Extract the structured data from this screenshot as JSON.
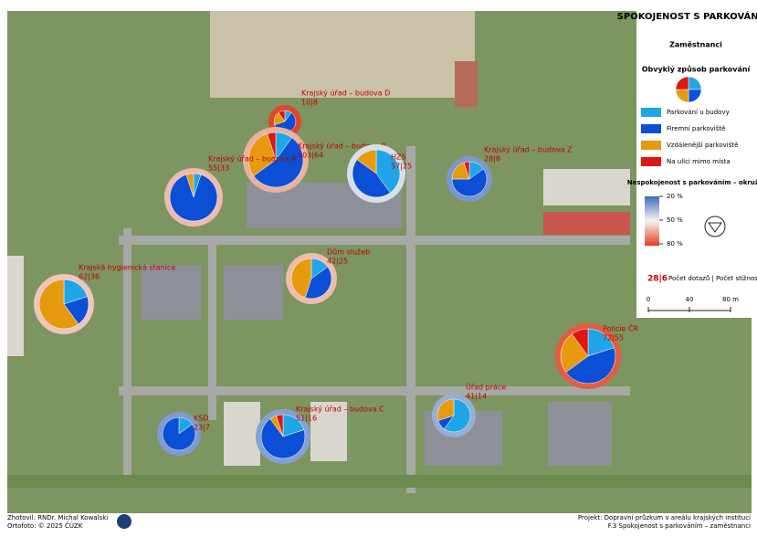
{
  "legend": {
    "title": "SPOKOJENOST S PARKOVÁNÍM",
    "subtitle": "Zaměstnanci",
    "pie_title": "Obvyklý způsob parkování",
    "categories": [
      {
        "label": "Parkování u budovy",
        "color": "#1ea6e6"
      },
      {
        "label": "Firemní parkoviště",
        "color": "#0a4fd6"
      },
      {
        "label": "Vzdálenější parkoviště",
        "color": "#e69a0f"
      },
      {
        "label": "Na ulici mimo místa",
        "color": "#dd1515"
      }
    ],
    "ring_title": "Nespokojenost s parkováním – okruží",
    "ring_ticks": [
      {
        "value": 20,
        "label": "20 %"
      },
      {
        "value": 50,
        "label": "50 %"
      },
      {
        "value": 80,
        "label": "80 %"
      }
    ],
    "count_example": "28|6",
    "count_text": "Počet dotazů | Počet stížností na parkování",
    "scale_ticks": [
      0,
      40,
      {
        "value": 80,
        "label": "80 m"
      }
    ]
  },
  "sites": [
    {
      "name": "Krajský úřad – budova D",
      "counts": "10|8",
      "shares": [
        10,
        60,
        20,
        10
      ],
      "dissatisfaction": 80
    },
    {
      "name": "Krajský úřad – budova B",
      "counts": "103|64",
      "shares": [
        10,
        55,
        30,
        5
      ],
      "dissatisfaction": 62
    },
    {
      "name": "HZS",
      "counts": "57|25",
      "shares": [
        40,
        45,
        15,
        0
      ],
      "dissatisfaction": 45
    },
    {
      "name": "Krajský úřad – budova Z",
      "counts": "28|8",
      "shares": [
        15,
        60,
        20,
        5
      ],
      "dissatisfaction": 29
    },
    {
      "name": "Krajský úřad – budova A",
      "counts": "55|33",
      "shares": [
        5,
        90,
        5,
        0
      ],
      "dissatisfaction": 60
    },
    {
      "name": "Dům služeb",
      "counts": "42|25",
      "shares": [
        15,
        40,
        45,
        0
      ],
      "dissatisfaction": 60
    },
    {
      "name": "Krajská hygienická stanice",
      "counts": "62|36",
      "shares": [
        20,
        20,
        60,
        0
      ],
      "dissatisfaction": 58
    },
    {
      "name": "Policie ČR",
      "counts": "72|55",
      "shares": [
        20,
        45,
        25,
        10
      ],
      "dissatisfaction": 76
    },
    {
      "name": "Úřad práce",
      "counts": "41|14",
      "shares": [
        60,
        10,
        30,
        0
      ],
      "dissatisfaction": 34
    },
    {
      "name": "KSD",
      "counts": "23|7",
      "shares": [
        15,
        85,
        0,
        0
      ],
      "dissatisfaction": 30
    },
    {
      "name": "Krajský úřad – budova C",
      "counts": "51|16",
      "shares": [
        20,
        70,
        5,
        5
      ],
      "dissatisfaction": 31
    }
  ],
  "footer": {
    "author": "Zhotovil: RNDr. Michal Kowalski",
    "photo": "Ortofoto: © 2025 ČÚZK",
    "project": "Projekt: Dopravní průzkum v areálu krajských institucí",
    "sheet": "F.3 Spokojenost s parkováním – zaměstnanci"
  }
}
